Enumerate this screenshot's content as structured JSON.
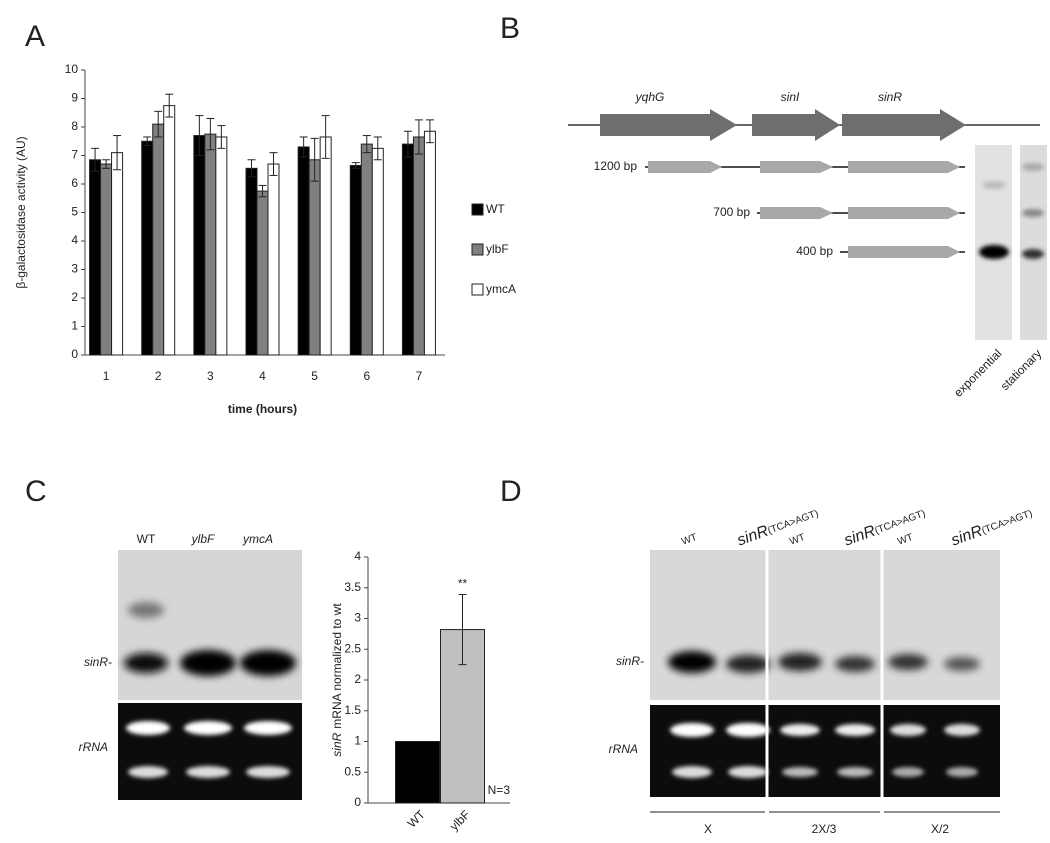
{
  "panel_labels": [
    "A",
    "B",
    "C",
    "D"
  ],
  "chart_data": [
    {
      "type": "bar",
      "ylabel": "β-galactosidase activity (AU)",
      "xlabel": "time (hours)",
      "categories": [
        "1",
        "2",
        "3",
        "4",
        "5",
        "6",
        "7"
      ],
      "series": [
        {
          "name": "WT",
          "color": "#000000",
          "values": [
            6.85,
            7.5,
            7.7,
            6.55,
            7.3,
            6.65,
            7.4
          ],
          "errors": [
            0.4,
            0.15,
            0.7,
            0.3,
            0.35,
            0.1,
            0.45
          ]
        },
        {
          "name": "ylbF",
          "color": "#808080",
          "values": [
            6.7,
            8.1,
            7.75,
            5.75,
            6.85,
            7.4,
            7.65
          ],
          "errors": [
            0.15,
            0.45,
            0.55,
            0.2,
            0.75,
            0.3,
            0.6
          ]
        },
        {
          "name": "ymcA",
          "color": "#ffffff",
          "values": [
            7.1,
            8.75,
            7.65,
            6.7,
            7.65,
            7.25,
            7.85
          ],
          "errors": [
            0.6,
            0.4,
            0.4,
            0.4,
            0.75,
            0.4,
            0.4
          ]
        }
      ],
      "ylim": [
        0,
        10
      ],
      "yticks": [
        0,
        1,
        2,
        3,
        4,
        5,
        6,
        7,
        8,
        9,
        10
      ]
    },
    {
      "type": "bar",
      "ylabel": {
        "gene": "sinR",
        "text": "mRNA normalized to wt"
      },
      "categories": [
        "WT",
        "ylbF"
      ],
      "values": [
        1,
        2.82
      ],
      "errors": [
        null,
        0.57
      ],
      "colors": [
        "#000000",
        "#c0c0c0"
      ],
      "significance": "**",
      "note": "N=3",
      "ylim": [
        0,
        4
      ],
      "yticks": [
        0,
        0.5,
        1,
        1.5,
        2,
        2.5,
        3,
        3.5,
        4
      ]
    }
  ],
  "diagram_b": {
    "genes": [
      "yqhG",
      "sinI",
      "sinR"
    ],
    "transcripts": [
      "1200 bp",
      "700 bp",
      "400 bp"
    ],
    "lanes": [
      "exponential",
      "stationary"
    ]
  },
  "gel_c": {
    "lanes": [
      "WT",
      "ylbF",
      "ymcA"
    ],
    "rows": [
      "sinR-",
      "rRNA"
    ]
  },
  "gel_d": {
    "lanes": [
      {
        "name": "WT"
      },
      {
        "name": "sinR",
        "sub": "(TCA>AGT)"
      },
      {
        "name": "WT"
      },
      {
        "name": "sinR",
        "sub": "(TCA>AGT)"
      },
      {
        "name": "WT"
      },
      {
        "name": "sinR",
        "sub": "(TCA>AGT)"
      }
    ],
    "groups": [
      "X",
      "2X/3",
      "X/2"
    ],
    "rows": [
      "sinR-",
      "rRNA"
    ]
  }
}
